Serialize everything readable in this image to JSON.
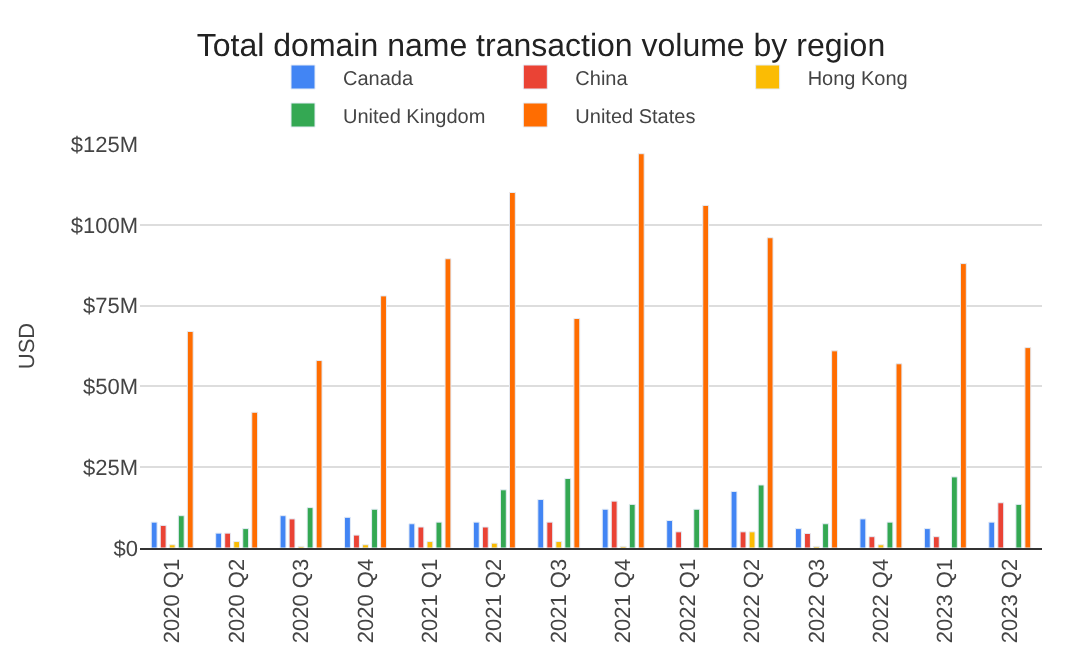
{
  "chart_data": {
    "type": "bar",
    "title": "Total domain name transaction volume by region",
    "ylabel": "USD",
    "categories": [
      "2020 Q1",
      "2020 Q2",
      "2020 Q3",
      "2020 Q4",
      "2021 Q1",
      "2021 Q2",
      "2021 Q3",
      "2021 Q4",
      "2022 Q1",
      "2022 Q2",
      "2022 Q3",
      "2022 Q4",
      "2023 Q1",
      "2023 Q2"
    ],
    "series": [
      {
        "name": "Canada",
        "color": "#4285f4",
        "values": [
          8,
          4.6,
          10,
          9.5,
          7.5,
          8,
          15,
          12,
          8.5,
          17.5,
          6,
          9,
          6,
          8
        ]
      },
      {
        "name": "China",
        "color": "#ea4335",
        "values": [
          7,
          4.6,
          9,
          4,
          6.5,
          6.5,
          8,
          14.5,
          5,
          5,
          4.5,
          3.5,
          3.5,
          14
        ]
      },
      {
        "name": "Hong Kong",
        "color": "#fbbc04",
        "values": [
          1,
          2,
          0.5,
          1,
          2,
          1.5,
          2,
          0.5,
          null,
          5,
          0.5,
          1,
          null,
          null
        ]
      },
      {
        "name": "United Kingdom",
        "color": "#34a853",
        "values": [
          10,
          6,
          12.5,
          12,
          8,
          18,
          21.5,
          13.5,
          12,
          19.5,
          7.5,
          8,
          22,
          13.5
        ]
      },
      {
        "name": "United States",
        "color": "#ff6d01",
        "values": [
          67,
          42,
          58,
          78,
          89.5,
          110,
          71,
          122,
          106,
          96,
          61,
          57,
          88,
          62
        ]
      }
    ],
    "ylim": [
      0,
      125
    ],
    "yticks": [
      {
        "value": 0,
        "label": "$0"
      },
      {
        "value": 25,
        "label": "$25M"
      },
      {
        "value": 50,
        "label": "$50M"
      },
      {
        "value": 75,
        "label": "$75M"
      },
      {
        "value": 100,
        "label": "$100M"
      },
      {
        "value": 125,
        "label": "$125M"
      }
    ],
    "grid": "y",
    "legend": "top"
  }
}
